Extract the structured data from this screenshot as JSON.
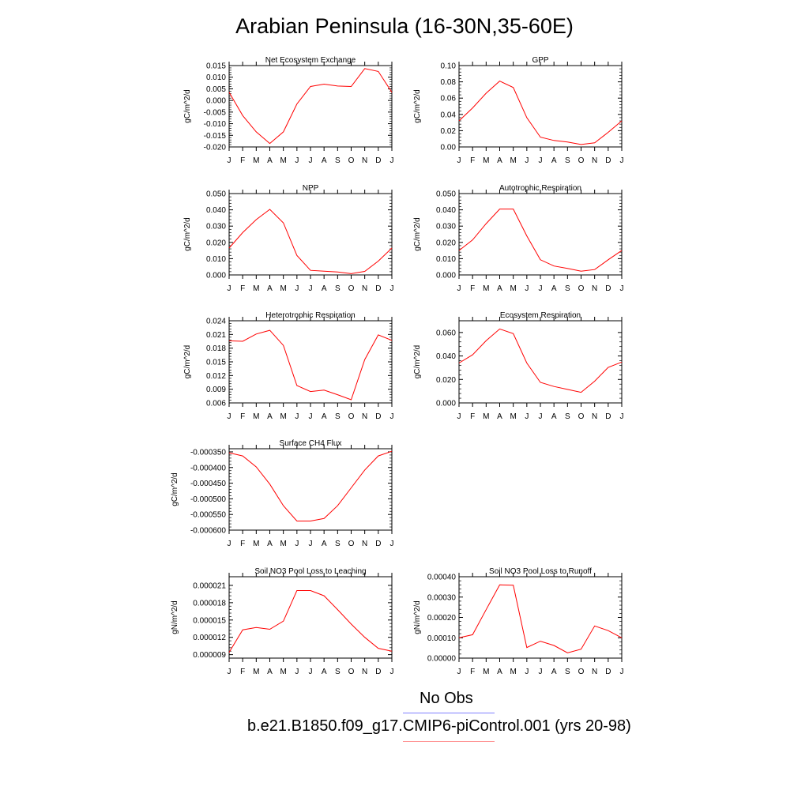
{
  "title": "Arabian Peninsula (16-30N,35-60E)",
  "colors": {
    "model_line": "#ff0000",
    "obs_line": "#8080ff",
    "model_legend_line": "#ff9090",
    "axis": "#000000"
  },
  "months": [
    "J",
    "F",
    "M",
    "A",
    "M",
    "J",
    "J",
    "A",
    "S",
    "O",
    "N",
    "D",
    "J"
  ],
  "legend": {
    "obs_label": "No Obs",
    "model_label": "b.e21.B1850.f09_g17.CMIP6-piControl.001 (yrs 20-98)"
  },
  "chart_data": [
    {
      "type": "line",
      "title": "Net Ecosystem Exchange",
      "ylabel": "gC/m^2/d",
      "ylim": [
        -0.02,
        0.015
      ],
      "yticks": [
        -0.02,
        -0.015,
        -0.01,
        -0.005,
        0,
        0.005,
        0.01,
        0.015
      ],
      "ytick_labels": [
        "-0.020",
        "-0.015",
        "-0.010",
        "-0.005",
        "0.000",
        "0.005",
        "0.010",
        "0.015"
      ],
      "values": [
        0.0035,
        -0.0065,
        -0.0135,
        -0.0185,
        -0.0135,
        -0.0015,
        0.006,
        0.007,
        0.0062,
        0.006,
        0.0137,
        0.0125,
        0.0035
      ]
    },
    {
      "type": "line",
      "title": "GPP",
      "ylabel": "gC/m^2/d",
      "ylim": [
        0,
        0.1
      ],
      "yticks": [
        0,
        0.02,
        0.04,
        0.06,
        0.08,
        0.1
      ],
      "ytick_labels": [
        "0.00",
        "0.02",
        "0.04",
        "0.06",
        "0.08",
        "0.10"
      ],
      "values": [
        0.032,
        0.048,
        0.066,
        0.081,
        0.073,
        0.036,
        0.012,
        0.008,
        0.006,
        0.003,
        0.005,
        0.018,
        0.032
      ]
    },
    {
      "type": "line",
      "title": "NPP",
      "ylabel": "gC/m^2/d",
      "ylim": [
        0,
        0.05
      ],
      "yticks": [
        0,
        0.01,
        0.02,
        0.03,
        0.04,
        0.05
      ],
      "ytick_labels": [
        "0.000",
        "0.010",
        "0.020",
        "0.030",
        "0.040",
        "0.050"
      ],
      "values": [
        0.0165,
        0.026,
        0.034,
        0.0403,
        0.032,
        0.012,
        0.0028,
        0.0023,
        0.0018,
        0.0008,
        0.0022,
        0.0085,
        0.0165
      ]
    },
    {
      "type": "line",
      "title": "Autotrophic Respiration",
      "ylabel": "gC/m^2/d",
      "ylim": [
        0,
        0.05
      ],
      "yticks": [
        0,
        0.01,
        0.02,
        0.03,
        0.04,
        0.05
      ],
      "ytick_labels": [
        "0.000",
        "0.010",
        "0.020",
        "0.030",
        "0.040",
        "0.050"
      ],
      "values": [
        0.015,
        0.0215,
        0.0315,
        0.0405,
        0.0405,
        0.024,
        0.0093,
        0.0055,
        0.004,
        0.0023,
        0.0033,
        0.0093,
        0.015
      ]
    },
    {
      "type": "line",
      "title": "Heterotrophic Respiration",
      "ylabel": "gC/m^2/d",
      "ylim": [
        0.006,
        0.024
      ],
      "yticks": [
        0.006,
        0.009,
        0.012,
        0.015,
        0.018,
        0.021,
        0.024
      ],
      "ytick_labels": [
        "0.006",
        "0.009",
        "0.012",
        "0.015",
        "0.018",
        "0.021",
        "0.024"
      ],
      "values": [
        0.0196,
        0.0195,
        0.0211,
        0.0219,
        0.0186,
        0.0098,
        0.0085,
        0.0088,
        0.0078,
        0.0067,
        0.0155,
        0.0209,
        0.0197
      ]
    },
    {
      "type": "line",
      "title": "Ecosystem Respiration",
      "ylabel": "gC/m^2/d",
      "ylim": [
        0,
        0.07
      ],
      "yticks": [
        0,
        0.02,
        0.04,
        0.06
      ],
      "ytick_labels": [
        "0.000",
        "0.020",
        "0.040",
        "0.060"
      ],
      "values": [
        0.034,
        0.041,
        0.053,
        0.063,
        0.059,
        0.034,
        0.0175,
        0.014,
        0.0115,
        0.009,
        0.0185,
        0.0303,
        0.0348
      ]
    },
    {
      "type": "line",
      "title": "Surface CH4 Flux",
      "ylabel": "gC/m^2/d",
      "ylim": [
        -0.0006,
        -0.00034
      ],
      "yticks": [
        -0.0006,
        -0.00055,
        -0.0005,
        -0.00045,
        -0.0004,
        -0.00035
      ],
      "ytick_labels": [
        "-0.000600",
        "-0.000550",
        "-0.000500",
        "-0.000450",
        "-0.000400",
        "-0.000350"
      ],
      "values": [
        -0.000353,
        -0.000363,
        -0.000398,
        -0.000453,
        -0.000522,
        -0.000571,
        -0.000571,
        -0.000563,
        -0.000522,
        -0.000465,
        -0.000408,
        -0.000363,
        -0.000348
      ]
    },
    {
      "type": "line",
      "title": "Soil NO3 Pool Loss to Leaching",
      "ylabel": "gN/m^2/d",
      "ylim": [
        8.4e-06,
        2.25e-05
      ],
      "yticks": [
        9e-06,
        1.2e-05,
        1.5e-05,
        1.8e-05,
        2.1e-05
      ],
      "ytick_labels": [
        "0.000009",
        "0.000012",
        "0.000015",
        "0.000018",
        "0.000021"
      ],
      "values": [
        9.4e-06,
        1.33e-05,
        1.37e-05,
        1.34e-05,
        1.48e-05,
        2.01e-05,
        2.01e-05,
        1.92e-05,
        1.68e-05,
        1.43e-05,
        1.2e-05,
        1.01e-05,
        9.6e-06
      ]
    },
    {
      "type": "line",
      "title": "Soil NO3 Pool Loss to Runoff",
      "ylabel": "gN/m^2/d",
      "ylim": [
        0,
        0.0004
      ],
      "yticks": [
        0,
        0.0001,
        0.0002,
        0.0003,
        0.0004
      ],
      "ytick_labels": [
        "0.00000",
        "0.00010",
        "0.00020",
        "0.00030",
        "0.00040"
      ],
      "values": [
        0.0001,
        0.000115,
        0.000238,
        0.00036,
        0.000358,
        5.2e-05,
        8.3e-05,
        6.2e-05,
        2.6e-05,
        4.4e-05,
        0.000158,
        0.000135,
        0.0001
      ]
    }
  ]
}
